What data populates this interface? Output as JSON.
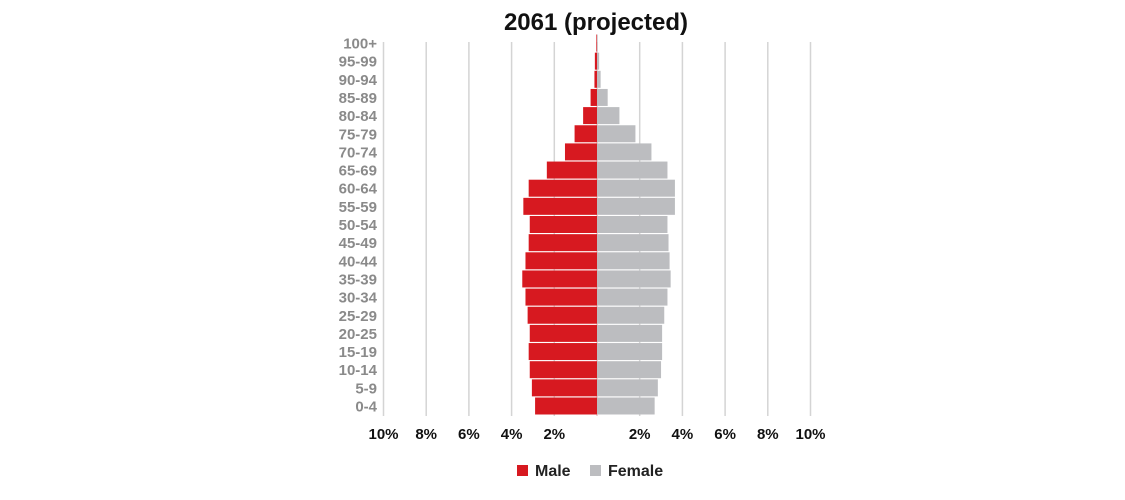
{
  "chart_data": {
    "type": "bar",
    "subtype": "population-pyramid",
    "title": "2061 (projected)",
    "categories": [
      "100+",
      "95-99",
      "90-94",
      "85-89",
      "80-84",
      "75-79",
      "70-74",
      "65-69",
      "60-64",
      "55-59",
      "50-54",
      "45-49",
      "40-44",
      "35-39",
      "30-34",
      "25-29",
      "20-25",
      "15-19",
      "10-14",
      "5-9",
      "0-4"
    ],
    "series": [
      {
        "name": "Male",
        "color": "#d71920",
        "values": [
          0.03,
          0.1,
          0.12,
          0.3,
          0.65,
          1.05,
          1.5,
          2.35,
          3.2,
          3.45,
          3.15,
          3.2,
          3.35,
          3.5,
          3.35,
          3.25,
          3.15,
          3.2,
          3.15,
          3.05,
          2.9
        ]
      },
      {
        "name": "Female",
        "color": "#bcbdc0",
        "values": [
          0.03,
          0.1,
          0.17,
          0.5,
          1.05,
          1.8,
          2.55,
          3.3,
          3.65,
          3.65,
          3.3,
          3.35,
          3.4,
          3.45,
          3.3,
          3.15,
          3.05,
          3.05,
          3.0,
          2.85,
          2.7
        ]
      }
    ],
    "xlim": [
      -10,
      10
    ],
    "x_ticks": [
      -10,
      -8,
      -6,
      -4,
      -2,
      2,
      4,
      6,
      8,
      10
    ],
    "tick_labels_left": [
      "10%",
      "8%",
      "6%",
      "4%",
      "2%"
    ],
    "tick_labels_right": [
      "2%",
      "4%",
      "6%",
      "8%",
      "10%"
    ],
    "grid": true,
    "legend_position": "bottom-center"
  }
}
